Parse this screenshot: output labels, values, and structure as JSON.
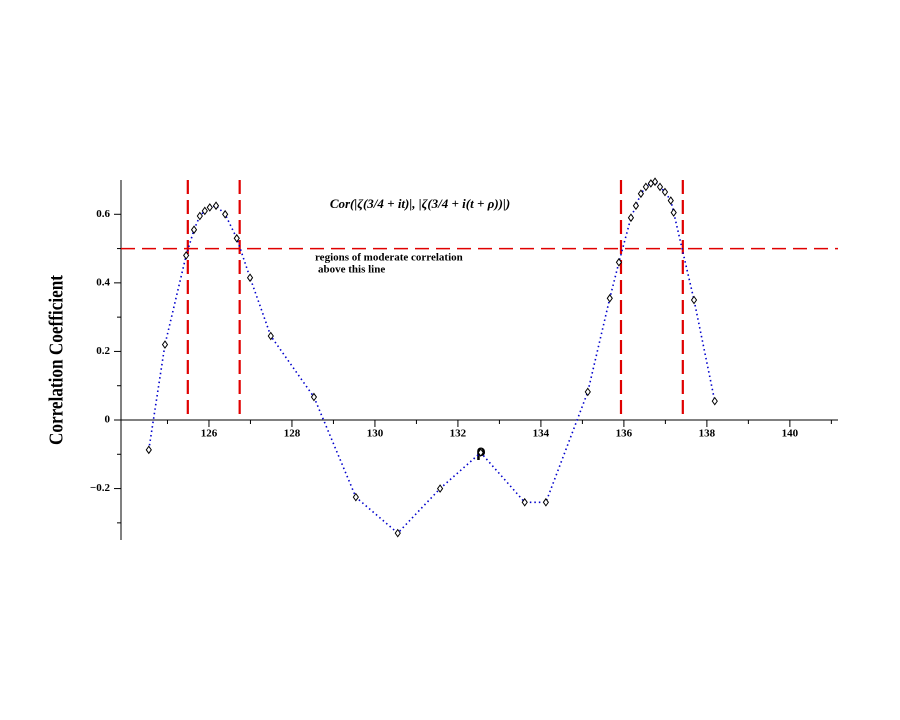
{
  "chart_data": {
    "type": "line",
    "formula": "Cor(|ζ(3/4 + it)|, |ζ(3/4 + i(t + ρ))|)",
    "annotation_lines": [
      "regions of moderate correlation",
      "above this line"
    ],
    "point_label": "ρ",
    "ylabel": "Correlation Coefficient",
    "xlim": [
      123.88,
      141.16
    ],
    "ylim": [
      -0.35,
      0.7
    ],
    "xticks": [
      126,
      128,
      130,
      132,
      134,
      136,
      138,
      140
    ],
    "xminor_ticks": [
      125,
      127,
      129,
      131,
      133,
      135,
      137,
      139,
      141
    ],
    "yticks": [
      {
        "value": -0.2,
        "label": "−0.2"
      },
      0,
      0.2,
      0.4,
      0.6
    ],
    "yminor_ticks": [
      -0.3,
      -0.1,
      0.1,
      0.3,
      0.5
    ],
    "series": [
      {
        "color": "#0000cc",
        "x": [
          124.55,
          124.94,
          125.45,
          125.64,
          125.78,
          125.9,
          126.02,
          126.17,
          126.39,
          126.67,
          126.99,
          127.49,
          128.53,
          129.54,
          130.55,
          131.57,
          132.55,
          133.61,
          134.12,
          135.13,
          135.66,
          135.88,
          136.17,
          136.29,
          136.41,
          136.53,
          136.65,
          136.75,
          136.87,
          136.99,
          137.13,
          137.2,
          137.69,
          138.19
        ],
        "values": [
          -0.087,
          0.22,
          0.48,
          0.555,
          0.595,
          0.61,
          0.62,
          0.625,
          0.6,
          0.53,
          0.415,
          0.245,
          0.067,
          -0.225,
          -0.33,
          -0.2,
          -0.095,
          -0.24,
          -0.24,
          0.082,
          0.355,
          0.46,
          0.59,
          0.625,
          0.66,
          0.68,
          0.69,
          0.695,
          0.68,
          0.665,
          0.64,
          0.605,
          0.35,
          0.055
        ]
      }
    ],
    "vlines": [
      125.49,
      126.74,
      135.93,
      137.42
    ],
    "hline": 0.5,
    "ref_color": "#e00000"
  }
}
